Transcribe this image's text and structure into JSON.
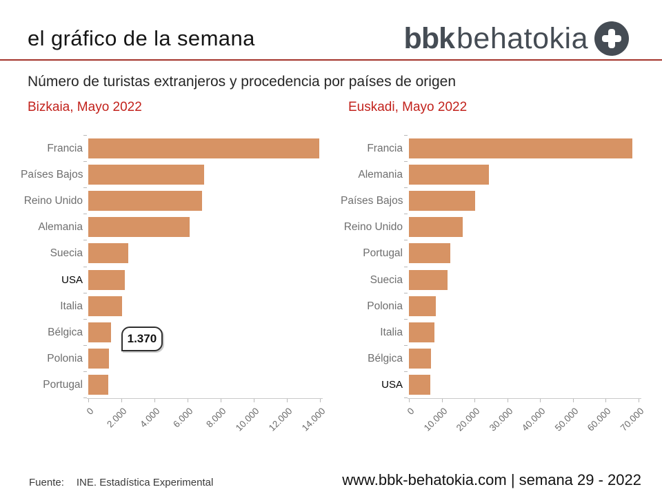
{
  "header": {
    "title": "el gráfico de la semana",
    "logo": {
      "bold_text": "bbk",
      "light_text": "behatokia",
      "icon": "plus-circle-icon"
    }
  },
  "subtitle": "Número de turistas extranjeros y procedencia por países de origen",
  "chart_data": [
    {
      "type": "bar",
      "orientation": "horizontal",
      "title": "Bizkaia, Mayo 2022",
      "categories": [
        "Francia",
        "Países Bajos",
        "Reino Unido",
        "Alemania",
        "Suecia",
        "USA",
        "Italia",
        "Bélgica",
        "Polonia",
        "Portugal"
      ],
      "values": [
        13950,
        7000,
        6880,
        6130,
        2420,
        2210,
        2040,
        1370,
        1250,
        1200
      ],
      "x_ticks": [
        "0",
        "2.000",
        "4.000",
        "6.000",
        "8.000",
        "10.000",
        "12.000",
        "14.000"
      ],
      "xlim": [
        0,
        14000
      ],
      "grid": false,
      "legend": "none",
      "annotation": {
        "category": "Bélgica",
        "label": "1.370",
        "value": 1370
      },
      "emphasized_category": "USA"
    },
    {
      "type": "bar",
      "orientation": "horizontal",
      "title": "Euskadi, Mayo 2022",
      "categories": [
        "Francia",
        "Alemania",
        "Países Bajos",
        "Reino Unido",
        "Portugal",
        "Suecia",
        "Polonia",
        "Italia",
        "Bélgica",
        "USA"
      ],
      "values": [
        68000,
        24300,
        20100,
        16300,
        12600,
        11800,
        8100,
        7700,
        6700,
        6500
      ],
      "x_ticks": [
        "0",
        "10.000",
        "20.000",
        "30.000",
        "40.000",
        "50.000",
        "60.000",
        "70.000"
      ],
      "xlim": [
        0,
        70000
      ],
      "grid": false,
      "legend": "none",
      "emphasized_category": "USA"
    }
  ],
  "footer": {
    "source_label": "Fuente:",
    "source_text": "INE. Estadística Experimental",
    "site_text": "www.bbk-behatokia.com | semana 29 - 2022"
  },
  "colors": {
    "bar": "#d79364",
    "accent_red": "#c2221c",
    "rule_red": "#a33229",
    "logo_slate": "#454c54"
  }
}
